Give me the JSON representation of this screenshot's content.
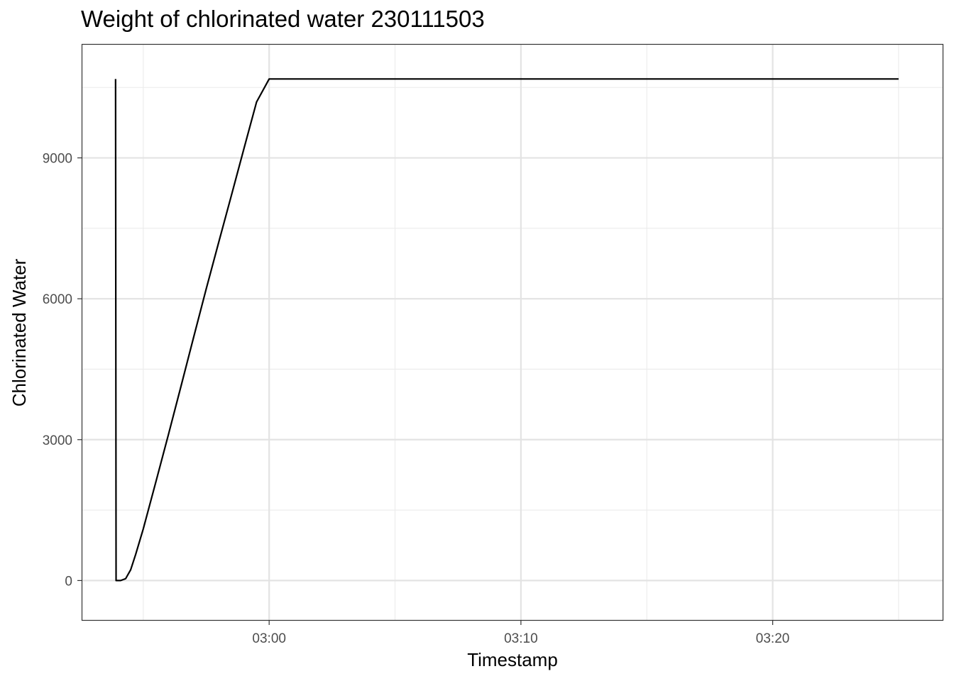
{
  "chart_data": {
    "type": "line",
    "title": "Weight of chlorinated water 230111503",
    "xlabel": "Timestamp",
    "ylabel": "Chlorinated Water",
    "x_unit": "minutes past 02:00",
    "xlim": [
      52.58,
      86.75
    ],
    "ylim": [
      -840,
      11410
    ],
    "xticks": [
      {
        "value": 60,
        "label": "03:00"
      },
      {
        "value": 70,
        "label": "03:10"
      },
      {
        "value": 80,
        "label": "03:20"
      }
    ],
    "x_minor_ticks": [
      55,
      65,
      75,
      85
    ],
    "yticks": [
      {
        "value": 0,
        "label": "0"
      },
      {
        "value": 3000,
        "label": "3000"
      },
      {
        "value": 6000,
        "label": "6000"
      },
      {
        "value": 9000,
        "label": "9000"
      }
    ],
    "y_minor_ticks": [
      1500,
      4500,
      7500,
      10500
    ],
    "grid": true,
    "legend": "none",
    "line_color": "#000000",
    "series": [
      {
        "x": [
          53.9,
          53.92,
          53.95,
          54.1,
          54.3,
          54.5,
          54.7,
          55.0,
          55.5,
          56.0,
          56.5,
          57.0,
          57.5,
          58.0,
          58.5,
          59.0,
          59.5,
          60.0,
          60.5,
          61.03,
          62.0,
          65.0,
          70.0,
          75.0,
          80.0,
          85.0,
          85.0
        ],
        "y": [
          10680,
          0,
          0,
          0,
          40,
          230,
          560,
          1100,
          2100,
          3110,
          4140,
          5180,
          6210,
          7210,
          8200,
          9200,
          10190,
          10680,
          10680,
          10680,
          10680,
          10680,
          10680,
          10680,
          10680,
          10680,
          10680
        ]
      }
    ]
  }
}
